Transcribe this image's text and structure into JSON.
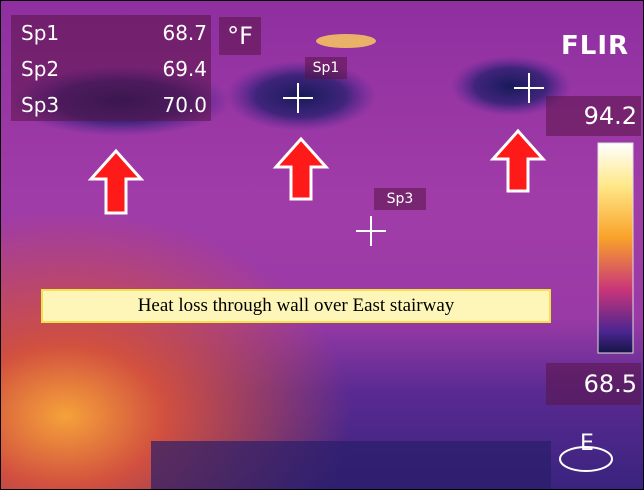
{
  "spots": [
    [
      "Sp1",
      "68.7"
    ],
    [
      "Sp2",
      "69.4"
    ],
    [
      "Sp3",
      "70.0"
    ]
  ],
  "unit": "°F",
  "markers": [
    "Sp1",
    "Sp3"
  ],
  "brand": "FLIR",
  "scale": {
    "max": "94.2",
    "min": "68.5"
  },
  "mode": "E",
  "caption": "Heat loss through wall over East stairway"
}
